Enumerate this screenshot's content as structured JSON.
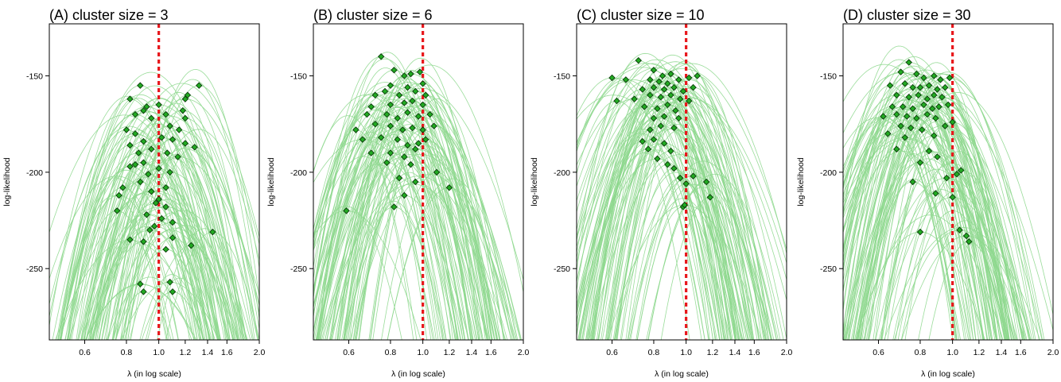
{
  "chart_data": [
    {
      "type": "scatter",
      "title": "(A) cluster size = 3",
      "xlabel": "λ (in log scale)",
      "ylabel": "log-likelihood",
      "x_scale": "log",
      "xlim": [
        0.47,
        2.0
      ],
      "ylim": [
        -287,
        -123
      ],
      "x_ticks": [
        "0.6",
        "0.8",
        "1.0",
        "1.2",
        "1.4",
        "1.6",
        "2.0"
      ],
      "y_ticks": [
        "-150",
        "-200",
        "-250"
      ],
      "reference_line": {
        "x": 1.0,
        "style": "dashed",
        "color": "#e8161b"
      },
      "curve_color": "#8ed88e",
      "point_color": "#22aa22",
      "points": [
        [
          0.88,
          -155
        ],
        [
          0.82,
          -162
        ],
        [
          1.32,
          -155
        ],
        [
          1.22,
          -160
        ],
        [
          1.2,
          -162
        ],
        [
          0.9,
          -168
        ],
        [
          0.92,
          -166
        ],
        [
          0.85,
          -170
        ],
        [
          1.0,
          -165
        ],
        [
          1.05,
          -170
        ],
        [
          1.18,
          -168
        ],
        [
          1.2,
          -172
        ],
        [
          0.8,
          -178
        ],
        [
          0.95,
          -172
        ],
        [
          1.08,
          -176
        ],
        [
          1.15,
          -178
        ],
        [
          0.85,
          -180
        ],
        [
          0.82,
          -186
        ],
        [
          0.9,
          -184
        ],
        [
          1.02,
          -182
        ],
        [
          1.1,
          -183
        ],
        [
          1.2,
          -185
        ],
        [
          1.28,
          -187
        ],
        [
          0.87,
          -190
        ],
        [
          0.95,
          -188
        ],
        [
          1.06,
          -190
        ],
        [
          1.14,
          -192
        ],
        [
          0.85,
          -196
        ],
        [
          0.82,
          -197
        ],
        [
          0.9,
          -195
        ],
        [
          1.0,
          -198
        ],
        [
          1.08,
          -200
        ],
        [
          0.93,
          -201
        ],
        [
          0.78,
          -208
        ],
        [
          0.88,
          -205
        ],
        [
          1.05,
          -208
        ],
        [
          0.95,
          -210
        ],
        [
          0.76,
          -212
        ],
        [
          1.0,
          -214
        ],
        [
          0.98,
          -216
        ],
        [
          1.05,
          -218
        ],
        [
          0.75,
          -220
        ],
        [
          0.92,
          -222
        ],
        [
          1.02,
          -224
        ],
        [
          1.1,
          -226
        ],
        [
          0.97,
          -228
        ],
        [
          0.94,
          -230
        ],
        [
          1.45,
          -231
        ],
        [
          0.82,
          -235
        ],
        [
          0.9,
          -236
        ],
        [
          1.1,
          -234
        ],
        [
          1.05,
          -240
        ],
        [
          1.25,
          -238
        ],
        [
          0.88,
          -258
        ],
        [
          0.9,
          -262
        ],
        [
          1.08,
          -257
        ],
        [
          1.1,
          -262
        ]
      ]
    },
    {
      "type": "scatter",
      "title": "(B) cluster size = 6",
      "xlabel": "λ (in log scale)",
      "ylabel": "log-likelihood",
      "x_scale": "log",
      "xlim": [
        0.47,
        2.0
      ],
      "ylim": [
        -287,
        -123
      ],
      "x_ticks": [
        "0.6",
        "0.8",
        "1.0",
        "1.2",
        "1.4",
        "1.6",
        "2.0"
      ],
      "y_ticks": [
        "-150",
        "-200",
        "-250"
      ],
      "reference_line": {
        "x": 1.0,
        "style": "dashed",
        "color": "#e8161b"
      },
      "curve_color": "#8ed88e",
      "point_color": "#22aa22",
      "points": [
        [
          0.75,
          -140
        ],
        [
          0.82,
          -147
        ],
        [
          0.88,
          -150
        ],
        [
          0.92,
          -149
        ],
        [
          0.98,
          -148
        ],
        [
          0.8,
          -155
        ],
        [
          0.9,
          -156
        ],
        [
          1.0,
          -154
        ],
        [
          0.72,
          -160
        ],
        [
          0.77,
          -158
        ],
        [
          0.85,
          -160
        ],
        [
          0.95,
          -158
        ],
        [
          1.02,
          -160
        ],
        [
          0.7,
          -166
        ],
        [
          0.8,
          -165
        ],
        [
          0.88,
          -164
        ],
        [
          0.93,
          -163
        ],
        [
          1.0,
          -165
        ],
        [
          0.68,
          -170
        ],
        [
          0.78,
          -170
        ],
        [
          0.84,
          -172
        ],
        [
          0.9,
          -169
        ],
        [
          0.97,
          -171
        ],
        [
          1.05,
          -170
        ],
        [
          0.63,
          -178
        ],
        [
          0.72,
          -175
        ],
        [
          0.8,
          -176
        ],
        [
          0.87,
          -178
        ],
        [
          0.93,
          -177
        ],
        [
          1.0,
          -178
        ],
        [
          1.08,
          -176
        ],
        [
          0.66,
          -183
        ],
        [
          0.75,
          -182
        ],
        [
          0.84,
          -183
        ],
        [
          0.9,
          -186
        ],
        [
          0.97,
          -185
        ],
        [
          1.02,
          -183
        ],
        [
          0.7,
          -190
        ],
        [
          0.8,
          -190
        ],
        [
          0.88,
          -192
        ],
        [
          0.95,
          -188
        ],
        [
          0.78,
          -195
        ],
        [
          0.92,
          -196
        ],
        [
          1.1,
          -200
        ],
        [
          0.85,
          -203
        ],
        [
          0.95,
          -205
        ],
        [
          1.2,
          -208
        ],
        [
          0.88,
          -212
        ],
        [
          0.82,
          -218
        ],
        [
          0.59,
          -220
        ]
      ]
    },
    {
      "type": "scatter",
      "title": "(C) cluster size = 10",
      "xlabel": "λ (in log scale)",
      "ylabel": "log-likelihood",
      "x_scale": "log",
      "xlim": [
        0.47,
        2.0
      ],
      "ylim": [
        -287,
        -123
      ],
      "x_ticks": [
        "0.6",
        "0.8",
        "1.0",
        "1.2",
        "1.4",
        "1.6",
        "2.0"
      ],
      "y_ticks": [
        "-150",
        "-200",
        "-250"
      ],
      "reference_line": {
        "x": 1.0,
        "style": "dashed",
        "color": "#e8161b"
      },
      "curve_color": "#8ed88e",
      "point_color": "#22aa22",
      "points": [
        [
          0.72,
          -142
        ],
        [
          0.8,
          -147
        ],
        [
          0.85,
          -150
        ],
        [
          0.9,
          -149
        ],
        [
          0.6,
          -151
        ],
        [
          0.66,
          -152
        ],
        [
          0.78,
          -152
        ],
        [
          0.83,
          -153
        ],
        [
          0.88,
          -154
        ],
        [
          0.95,
          -152
        ],
        [
          1.02,
          -151
        ],
        [
          1.08,
          -150
        ],
        [
          0.74,
          -157
        ],
        [
          0.8,
          -156
        ],
        [
          0.86,
          -157
        ],
        [
          0.92,
          -156
        ],
        [
          0.98,
          -158
        ],
        [
          1.05,
          -156
        ],
        [
          0.62,
          -163
        ],
        [
          0.7,
          -162
        ],
        [
          0.78,
          -160
        ],
        [
          0.84,
          -161
        ],
        [
          0.9,
          -160
        ],
        [
          0.96,
          -162
        ],
        [
          1.02,
          -163
        ],
        [
          0.75,
          -166
        ],
        [
          0.82,
          -167
        ],
        [
          0.88,
          -165
        ],
        [
          0.93,
          -168
        ],
        [
          0.8,
          -172
        ],
        [
          0.86,
          -171
        ],
        [
          0.95,
          -172
        ],
        [
          0.78,
          -178
        ],
        [
          0.84,
          -176
        ],
        [
          0.92,
          -177
        ],
        [
          0.74,
          -184
        ],
        [
          0.8,
          -183
        ],
        [
          0.86,
          -185
        ],
        [
          0.77,
          -188
        ],
        [
          0.9,
          -189
        ],
        [
          0.82,
          -193
        ],
        [
          0.88,
          -196
        ],
        [
          0.92,
          -198
        ],
        [
          0.96,
          -203
        ],
        [
          1.0,
          -206
        ],
        [
          1.05,
          -202
        ],
        [
          1.15,
          -205
        ],
        [
          1.18,
          -213
        ],
        [
          0.98,
          -218
        ],
        [
          0.99,
          -217
        ]
      ]
    },
    {
      "type": "scatter",
      "title": "(D) cluster size = 30",
      "xlabel": "λ (in log scale)",
      "ylabel": "log-likelihood",
      "x_scale": "log",
      "xlim": [
        0.47,
        2.0
      ],
      "ylim": [
        -287,
        -123
      ],
      "x_ticks": [
        "0.6",
        "0.8",
        "1.0",
        "1.2",
        "1.4",
        "1.6",
        "2.0"
      ],
      "y_ticks": [
        "-150",
        "-200",
        "-250"
      ],
      "reference_line": {
        "x": 1.0,
        "style": "dashed",
        "color": "#e8161b"
      },
      "curve_color": "#8ed88e",
      "point_color": "#22aa22",
      "points": [
        [
          0.74,
          -143
        ],
        [
          0.7,
          -148
        ],
        [
          0.78,
          -149
        ],
        [
          0.82,
          -151
        ],
        [
          0.88,
          -150
        ],
        [
          0.92,
          -152
        ],
        [
          0.98,
          -151
        ],
        [
          0.65,
          -155
        ],
        [
          0.72,
          -154
        ],
        [
          0.76,
          -156
        ],
        [
          0.8,
          -156
        ],
        [
          0.85,
          -155
        ],
        [
          0.9,
          -157
        ],
        [
          0.95,
          -156
        ],
        [
          0.68,
          -160
        ],
        [
          0.74,
          -161
        ],
        [
          0.79,
          -160
        ],
        [
          0.84,
          -162
        ],
        [
          0.88,
          -160
        ],
        [
          0.93,
          -161
        ],
        [
          0.66,
          -166
        ],
        [
          0.71,
          -166
        ],
        [
          0.76,
          -167
        ],
        [
          0.82,
          -165
        ],
        [
          0.87,
          -167
        ],
        [
          0.91,
          -166
        ],
        [
          0.97,
          -165
        ],
        [
          0.62,
          -171
        ],
        [
          0.68,
          -170
        ],
        [
          0.73,
          -171
        ],
        [
          0.78,
          -172
        ],
        [
          0.84,
          -170
        ],
        [
          0.89,
          -172
        ],
        [
          0.7,
          -176
        ],
        [
          0.75,
          -177
        ],
        [
          0.81,
          -178
        ],
        [
          0.95,
          -176
        ],
        [
          1.0,
          -174
        ],
        [
          0.64,
          -180
        ],
        [
          0.72,
          -182
        ],
        [
          0.88,
          -181
        ],
        [
          0.68,
          -188
        ],
        [
          0.85,
          -189
        ],
        [
          0.9,
          -192
        ],
        [
          0.8,
          -195
        ],
        [
          1.06,
          -199
        ],
        [
          1.03,
          -201
        ],
        [
          0.96,
          -203
        ],
        [
          0.76,
          -205
        ],
        [
          0.89,
          -211
        ],
        [
          1.0,
          -213
        ],
        [
          1.05,
          -230
        ],
        [
          1.1,
          -233
        ],
        [
          1.12,
          -236
        ],
        [
          0.8,
          -231
        ]
      ]
    }
  ]
}
